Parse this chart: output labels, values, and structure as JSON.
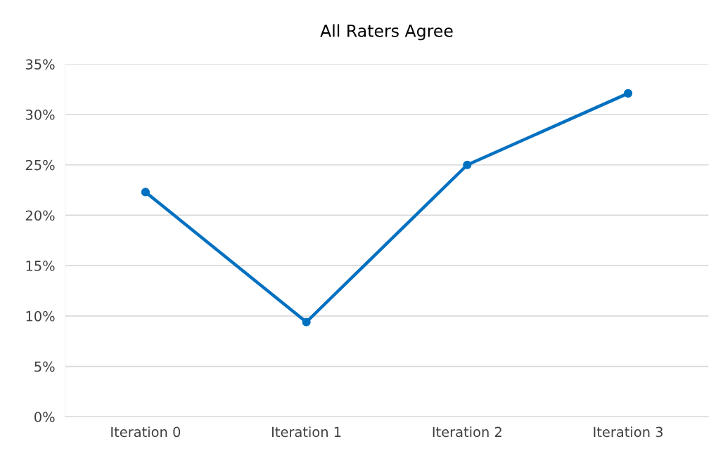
{
  "chart_data": {
    "type": "line",
    "title": "All Raters Agree",
    "categories": [
      "Iteration 0",
      "Iteration 1",
      "Iteration 2",
      "Iteration 3"
    ],
    "series": [
      {
        "color": "#0070c0",
        "values": [
          22.3,
          9.4,
          25.0,
          32.1
        ]
      }
    ],
    "ylim": [
      0,
      35
    ],
    "yticks": [
      {
        "value": 0,
        "label": "0%"
      },
      {
        "value": 5,
        "label": "5%"
      },
      {
        "value": 10,
        "label": "10%"
      },
      {
        "value": 15,
        "label": "15%"
      },
      {
        "value": 20,
        "label": "20%"
      },
      {
        "value": 25,
        "label": "25%"
      },
      {
        "value": 30,
        "label": "30%"
      },
      {
        "value": 35,
        "label": "35%"
      }
    ],
    "grid": "y",
    "marker": "circle",
    "line_style": "solid"
  }
}
